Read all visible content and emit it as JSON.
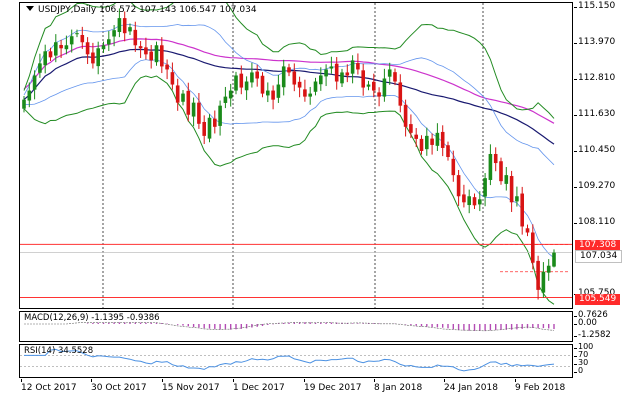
{
  "chart_title": "USDJPY,Daily  106.572 107.143 106.547 107.034",
  "colors": {
    "bull": "#1a8a1a",
    "bear": "#d81414",
    "bb_outer": "#228b22",
    "bb_inner": "#6495ed",
    "ma_slow": "#191970",
    "ma_magenta": "#cc33cc",
    "hline": "#ff3333",
    "current_line": "#c0c0c0",
    "macd_hist": "#b44cb4",
    "rsi_line": "#4a90e2",
    "tag_red": "#ff2a2a",
    "tag_bg": "#ffffff"
  },
  "price_axis": {
    "min": 105.2,
    "max": 115.3,
    "ticks": [
      "115.150",
      "113.970",
      "112.810",
      "111.630",
      "110.450",
      "109.270",
      "108.110",
      "105.750"
    ]
  },
  "price_tags": {
    "upper_level": "107.308",
    "current": "107.034",
    "lower_level": "105.549"
  },
  "dates": [
    "12 Oct 2017",
    "30 Oct 2017",
    "15 Nov 2017",
    "1 Dec 2017",
    "19 Dec 2017",
    "8 Jan 2018",
    "24 Jan 2018",
    "9 Feb 2018"
  ],
  "macd": {
    "label": "MACD(12,26,9) -1.1395 -0.9386",
    "ticks": [
      "0.7626",
      "0.00",
      "-1.2582"
    ]
  },
  "rsi": {
    "label": "RSI(14) 34.5528",
    "ticks": [
      "100",
      "70",
      "30",
      "0"
    ]
  },
  "chart_data": {
    "type": "candlestick",
    "symbol": "USDJPY",
    "timeframe": "Daily",
    "last_bar": {
      "open": 106.572,
      "high": 107.143,
      "low": 106.547,
      "close": 107.034
    },
    "horizontal_levels": [
      107.308,
      105.549
    ],
    "current_price": 107.034,
    "closes": [
      112.1,
      112.4,
      112.9,
      113.3,
      113.7,
      113.5,
      114.0,
      113.8,
      113.9,
      114.2,
      114.3,
      114.0,
      113.6,
      113.3,
      113.8,
      113.9,
      114.1,
      114.4,
      114.8,
      114.3,
      114.5,
      113.9,
      113.8,
      113.6,
      113.4,
      113.9,
      113.2,
      113.1,
      112.6,
      112.0,
      112.3,
      111.6,
      112.0,
      111.3,
      110.9,
      111.5,
      111.2,
      111.9,
      112.2,
      112.4,
      112.9,
      112.5,
      112.7,
      113.0,
      112.8,
      112.3,
      112.4,
      112.1,
      112.6,
      113.2,
      113.0,
      112.6,
      112.5,
      112.2,
      112.3,
      112.7,
      112.9,
      113.1,
      113.2,
      112.7,
      113.0,
      112.9,
      113.4,
      113.1,
      112.5,
      112.6,
      112.4,
      112.2,
      112.8,
      113.1,
      112.7,
      111.9,
      111.2,
      111.0,
      110.8,
      110.4,
      110.9,
      110.6,
      111.0,
      110.5,
      110.2,
      109.6,
      108.9,
      108.7,
      108.9,
      108.6,
      108.8,
      109.5,
      110.3,
      110.0,
      109.4,
      109.6,
      108.7,
      108.9,
      107.9,
      107.7,
      106.7,
      105.8,
      106.4,
      106.6,
      107.034
    ],
    "bollinger_note": "Bollinger Bands (outer green, inner blue), moving averages (navy, magenta)"
  }
}
